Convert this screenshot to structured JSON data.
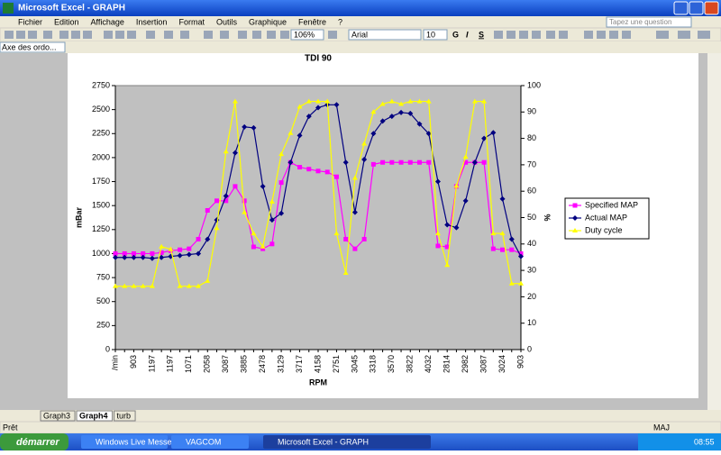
{
  "window": {
    "title": "Microsoft Excel - GRAPH"
  },
  "menu": [
    "Fichier",
    "Edition",
    "Affichage",
    "Insertion",
    "Format",
    "Outils",
    "Graphique",
    "Fenêtre",
    "?"
  ],
  "question_box": "Tapez une question",
  "toolbar": {
    "zoom": "106%",
    "font": "Arial",
    "font_size": "10",
    "bold": "G",
    "italic": "I",
    "underline": "S"
  },
  "name_box": "Axe des ordo...",
  "chart_data": {
    "type": "line",
    "title": "TDI 90",
    "x_label": "RPM",
    "y_label": "mBar",
    "y2_label": "%",
    "categories": [
      "/min",
      null,
      "903",
      null,
      "1197",
      null,
      "1197",
      null,
      "1071",
      null,
      "2058",
      null,
      "3087",
      null,
      "3885",
      null,
      "2478",
      null,
      "3129",
      null,
      "3717",
      null,
      "4158",
      null,
      "2751",
      null,
      "3045",
      null,
      "3318",
      null,
      "3570",
      null,
      "3822",
      null,
      "4032",
      null,
      "2814",
      null,
      "2982",
      null,
      "3087",
      null,
      "3024",
      null,
      "903"
    ],
    "ylim": [
      0,
      2750
    ],
    "yticks": [
      0,
      250,
      500,
      750,
      1000,
      1250,
      1500,
      1750,
      2000,
      2250,
      2500,
      2750
    ],
    "y2lim": [
      0,
      100
    ],
    "y2ticks": [
      0,
      10,
      20,
      30,
      40,
      50,
      60,
      70,
      80,
      90,
      100
    ],
    "grid": false,
    "legend": "right",
    "plot_color": "#c0c0c0",
    "series": [
      {
        "name": "Specified MAP",
        "color": "#ff00ff",
        "marker": "square",
        "values": [
          1000,
          1000,
          1000,
          1000,
          1000,
          1010,
          1030,
          1040,
          1050,
          1150,
          1450,
          1550,
          1550,
          1700,
          1550,
          1070,
          1050,
          1100,
          1740,
          1950,
          1900,
          1880,
          1860,
          1850,
          1800,
          1150,
          1050,
          1150,
          1930,
          1950,
          1950,
          1950,
          1950,
          1950,
          1950,
          1080,
          1070,
          1700,
          1950,
          1950,
          1950,
          1050,
          1040,
          1040,
          1000
        ]
      },
      {
        "name": "Actual MAP",
        "color": "#000080",
        "marker": "diamond",
        "values": [
          960,
          960,
          960,
          960,
          950,
          960,
          970,
          980,
          990,
          1000,
          1150,
          1350,
          1600,
          2050,
          2320,
          2310,
          1700,
          1350,
          1420,
          1950,
          2230,
          2430,
          2520,
          2550,
          2550,
          1950,
          1430,
          1980,
          2250,
          2380,
          2430,
          2470,
          2460,
          2350,
          2250,
          1750,
          1300,
          1270,
          1550,
          1950,
          2200,
          2260,
          1570,
          1150,
          970
        ]
      },
      {
        "name": "Duty cycle",
        "color": "#ffff00",
        "marker": "triangle",
        "axis": "y2",
        "values": [
          24,
          24,
          24,
          24,
          24,
          39,
          38,
          24,
          24,
          24,
          26,
          46,
          75,
          94,
          52,
          44,
          39,
          56,
          74,
          82,
          92,
          94,
          94,
          94,
          44,
          29,
          65,
          78,
          90,
          93,
          94,
          93,
          94,
          94,
          94,
          44,
          32,
          62,
          73,
          94,
          94,
          44,
          44,
          25,
          25
        ]
      }
    ]
  },
  "sheet_tabs": [
    "Graph3",
    "Graph4",
    "turb"
  ],
  "status": {
    "left": "Prêt",
    "right": "MAJ"
  },
  "taskbar": {
    "start": "démarrer",
    "items": [
      "Windows Live Messen...",
      "VAGCOM",
      "Microsoft Excel - GRAPH"
    ],
    "clock": "08:55"
  }
}
